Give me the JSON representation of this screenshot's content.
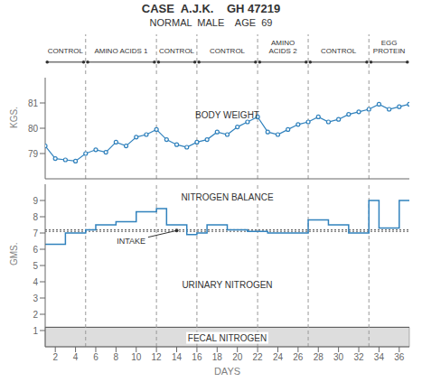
{
  "chart_data": [
    {
      "type": "line",
      "title": "CASE  A.J.K.    GH 47219",
      "subtitle": "NORMAL  MALE    AGE  69",
      "periods": [
        {
          "label": "CONTROL",
          "x_start": 1,
          "x_end": 5
        },
        {
          "label": "AMINO ACIDS 1",
          "x_start": 5,
          "x_end": 12
        },
        {
          "label": "CONTROL",
          "x_start": 12,
          "x_end": 16
        },
        {
          "label": "CONTROL",
          "x_start": 16,
          "x_end": 22
        },
        {
          "label": "AMINO\nACIDS 2",
          "x_start": 22,
          "x_end": 27
        },
        {
          "label": "CONTROL",
          "x_start": 27,
          "x_end": 33
        },
        {
          "label": "EGG\nPROTEIN",
          "x_start": 33,
          "x_end": 37
        }
      ],
      "vlines": [
        5,
        12,
        16,
        22,
        27,
        33
      ],
      "x": [
        1,
        2,
        3,
        4,
        5,
        6,
        7,
        8,
        9,
        10,
        11,
        12,
        13,
        14,
        15,
        16,
        17,
        18,
        19,
        20,
        21,
        22,
        23,
        24,
        25,
        26,
        27,
        28,
        29,
        30,
        31,
        32,
        33,
        34,
        35,
        36,
        37
      ],
      "values": [
        79.3,
        78.8,
        78.75,
        78.7,
        79.0,
        79.15,
        79.05,
        79.45,
        79.3,
        79.65,
        79.75,
        79.95,
        79.55,
        79.35,
        79.25,
        79.45,
        79.55,
        79.85,
        79.75,
        80.05,
        80.25,
        80.45,
        79.85,
        79.75,
        79.95,
        80.15,
        80.25,
        80.45,
        80.25,
        80.35,
        80.55,
        80.65,
        80.75,
        80.95,
        80.75,
        80.85,
        80.95
      ],
      "ylabel": "KGS.",
      "xlim": [
        1,
        37
      ],
      "ylim": [
        78,
        82
      ],
      "yticks": [
        79,
        80,
        81
      ],
      "marker": "circle",
      "tick_labels": "y",
      "annotations": [
        {
          "text": "BODY WEIGHT",
          "x": 19,
          "y": 80.3
        }
      ]
    },
    {
      "type": "step",
      "segments": [
        [
          1,
          2,
          6.3
        ],
        [
          2,
          3,
          6.3
        ],
        [
          3,
          5,
          7.0
        ],
        [
          5,
          6,
          7.2
        ],
        [
          6,
          8,
          7.5
        ],
        [
          8,
          10,
          7.7
        ],
        [
          10,
          12,
          8.3
        ],
        [
          12,
          13,
          8.5
        ],
        [
          13,
          14,
          7.5
        ],
        [
          14,
          15,
          7.5
        ],
        [
          15,
          16,
          6.9
        ],
        [
          16,
          17,
          7.0
        ],
        [
          17,
          19,
          7.5
        ],
        [
          19,
          21,
          7.2
        ],
        [
          21,
          23,
          7.1
        ],
        [
          23,
          27,
          7.0
        ],
        [
          27,
          29,
          7.8
        ],
        [
          29,
          31,
          7.5
        ],
        [
          31,
          33,
          7.0
        ],
        [
          33,
          34,
          9.0
        ],
        [
          34,
          36,
          7.3
        ],
        [
          36,
          37,
          9.0
        ]
      ],
      "intake_lines": [
        7.1,
        7.2
      ],
      "fecal_nitrogen_level": 1.2,
      "vlines": [
        5,
        12,
        16,
        22,
        27,
        33
      ],
      "xlabel": "DAYS",
      "ylabel": "GMS.",
      "xlim": [
        1,
        37
      ],
      "xticks": [
        2,
        4,
        6,
        8,
        10,
        12,
        14,
        16,
        18,
        20,
        22,
        24,
        26,
        28,
        30,
        32,
        34,
        36
      ],
      "ylim": [
        0,
        10
      ],
      "yticks": [
        1,
        2,
        3,
        4,
        5,
        6,
        7,
        8,
        9
      ],
      "annotations": [
        {
          "text": "NITROGEN BALANCE",
          "x": 19,
          "y": 9.2
        },
        {
          "text": "URINARY NITROGEN",
          "x": 19,
          "y": 3.8
        },
        {
          "text": "FECAL NITROGEN",
          "x": 19,
          "y": 0.55
        },
        {
          "text": "INTAKE",
          "x": 9.5,
          "y": 6.5,
          "arrow_to": [
            14.0,
            7.15
          ]
        }
      ]
    }
  ]
}
